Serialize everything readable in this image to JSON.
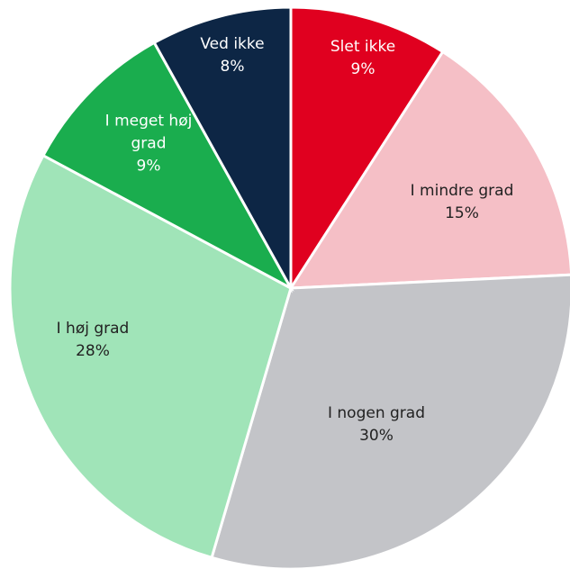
{
  "chart_data": {
    "type": "pie",
    "categories": [
      "Slet ikke",
      "I mindre grad",
      "I nogen grad",
      "I høj grad",
      "I meget høj grad",
      "Ved ikke"
    ],
    "values": [
      9,
      15,
      30,
      28,
      9,
      8
    ],
    "value_labels": [
      "9%",
      "15%",
      "30%",
      "28%",
      "9%",
      "8%"
    ],
    "colors": [
      "#e0001f",
      "#f5bfc6",
      "#c3c4c8",
      "#a0e4b8",
      "#1aad4e",
      "#0d2645"
    ]
  }
}
